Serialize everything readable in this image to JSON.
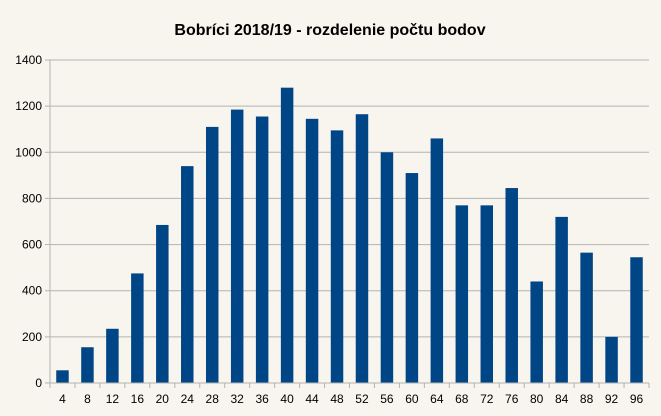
{
  "chart_data": {
    "type": "bar",
    "title": "Bobríci 2018/19 - rozdelenie počtu bodov",
    "xlabel": "",
    "ylabel": "",
    "categories": [
      "4",
      "8",
      "12",
      "16",
      "20",
      "24",
      "28",
      "32",
      "36",
      "40",
      "44",
      "48",
      "52",
      "56",
      "60",
      "64",
      "68",
      "72",
      "76",
      "80",
      "84",
      "88",
      "92",
      "96"
    ],
    "values": [
      55,
      155,
      235,
      475,
      685,
      940,
      1110,
      1185,
      1155,
      1280,
      1145,
      1095,
      1165,
      1000,
      910,
      1060,
      770,
      770,
      845,
      440,
      720,
      565,
      200,
      545
    ],
    "ylim": [
      0,
      1400
    ],
    "yticks": [
      "0",
      "200",
      "400",
      "600",
      "800",
      "1000",
      "1200",
      "1400"
    ],
    "grid": true,
    "legend": "none",
    "colors": {
      "bar": "#004586",
      "grid": "#b3b3b3",
      "axis": "#b3b3b3",
      "background": "#f8f4ee"
    }
  }
}
